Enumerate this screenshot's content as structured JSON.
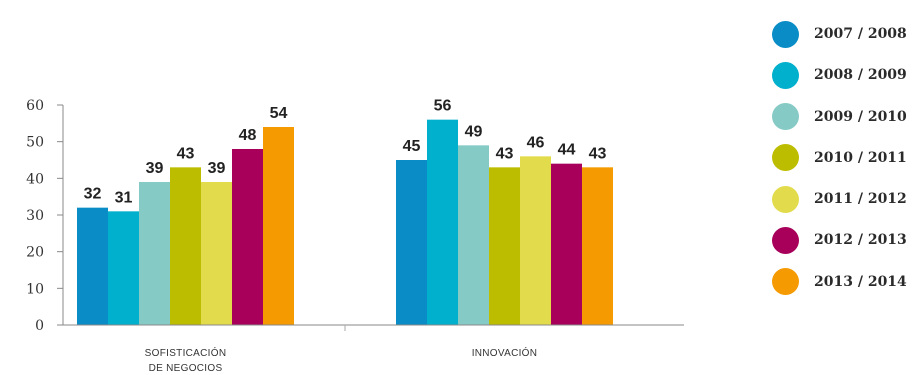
{
  "chart_data": {
    "type": "bar",
    "categories": [
      [
        "SOFISTICACIÓN",
        "DE NEGOCIOS"
      ],
      [
        "INNOVACIÓN"
      ]
    ],
    "series": [
      {
        "name": "2007 / 2008",
        "color": "#0a8dc6",
        "values": [
          32,
          45
        ]
      },
      {
        "name": "2008 / 2009",
        "color": "#00b0cc",
        "values": [
          31,
          56
        ]
      },
      {
        "name": "2009 / 2010",
        "color": "#86cac6",
        "values": [
          39,
          49
        ]
      },
      {
        "name": "2010 / 2011",
        "color": "#bdbd00",
        "values": [
          43,
          43
        ]
      },
      {
        "name": "2011 / 2012",
        "color": "#e2dc4d",
        "values": [
          39,
          46
        ]
      },
      {
        "name": "2012 / 2013",
        "color": "#a8005a",
        "values": [
          48,
          44
        ]
      },
      {
        "name": "2013 / 2014",
        "color": "#f59a00",
        "values": [
          54,
          43
        ]
      }
    ],
    "yticks": [
      "0",
      "10",
      "20",
      "30",
      "40",
      "50",
      "60"
    ],
    "ylim": [
      0,
      60
    ],
    "legend_position": "right"
  }
}
